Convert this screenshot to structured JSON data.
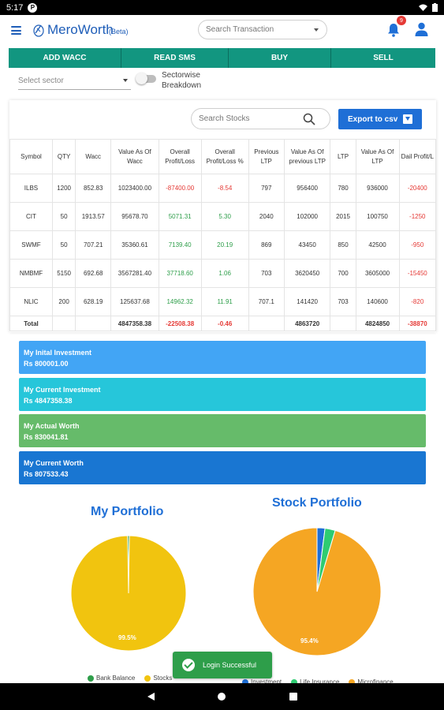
{
  "statusbar": {
    "time": "5:17",
    "app_glyph": "P"
  },
  "app": {
    "name": "MeroWorth",
    "beta": "(Beta)"
  },
  "search_transaction": {
    "placeholder": "Search Transaction"
  },
  "notifications": {
    "count": "9"
  },
  "actions": {
    "add_wacc": "ADD WACC",
    "read_sms": "READ SMS",
    "buy": "BUY",
    "sell": "SELL"
  },
  "filters": {
    "sector_placeholder": "Select sector",
    "sectorwise_label": "Sectorwise Breakdown",
    "sectorwise_on": false
  },
  "stocks_search": {
    "placeholder": "Search Stocks"
  },
  "export": {
    "label": "Export to csv"
  },
  "table": {
    "headers": [
      "Symbol",
      "QTY",
      "Wacc",
      "Value As Of Wacc",
      "Overall Profit/Loss",
      "Overall Profit/Loss %",
      "Previous LTP",
      "Value As Of previous LTP",
      "LTP",
      "Value As Of LTP",
      "Dail Profit/L"
    ],
    "rows": [
      [
        "ILBS",
        "1200",
        "852.83",
        "1023400.00",
        "-87400.00",
        "-8.54",
        "797",
        "956400",
        "780",
        "936000",
        "-20400"
      ],
      [
        "CIT",
        "50",
        "1913.57",
        "95678.70",
        "5071.31",
        "5.30",
        "2040",
        "102000",
        "2015",
        "100750",
        "-1250"
      ],
      [
        "SWMF",
        "50",
        "707.21",
        "35360.61",
        "7139.40",
        "20.19",
        "869",
        "43450",
        "850",
        "42500",
        "-950"
      ],
      [
        "NMBMF",
        "5150",
        "692.68",
        "3567281.40",
        "37718.60",
        "1.06",
        "703",
        "3620450",
        "700",
        "3605000",
        "-15450"
      ],
      [
        "NLIC",
        "200",
        "628.19",
        "125637.68",
        "14962.32",
        "11.91",
        "707.1",
        "141420",
        "703",
        "140600",
        "-820"
      ]
    ],
    "total": [
      "Total",
      "",
      "",
      "4847358.38",
      "-22508.38",
      "-0.46",
      "",
      "4863720",
      "",
      "4824850",
      "-38870"
    ]
  },
  "summary": [
    {
      "label": "My Inital Investment",
      "value": "Rs 800001.00",
      "color": "#42a5f5"
    },
    {
      "label": "My Current Investment",
      "value": "Rs 4847358.38",
      "color": "#26c6da"
    },
    {
      "label": "My Actual Worth",
      "value": "Rs 830041.81",
      "color": "#66bb6a"
    },
    {
      "label": "My Current Worth",
      "value": "Rs 807533.43",
      "color": "#1976d2"
    }
  ],
  "chart_data": [
    {
      "type": "pie",
      "title": "My Portfolio",
      "labels": [
        "Bank Balance",
        "Stocks"
      ],
      "values": [
        0.5,
        99.5
      ],
      "colors": [
        "#2e9e4a",
        "#f1c40f"
      ],
      "data_labels": [
        "",
        "99.5%"
      ],
      "legend": "bottom"
    },
    {
      "type": "pie",
      "title": "Stock Portfolio",
      "labels": [
        "Investment",
        "Life Insurance",
        "Microfinance"
      ],
      "values": [
        2.0,
        2.6,
        95.4
      ],
      "colors": [
        "#1f6fd6",
        "#2ecc71",
        "#f5a623"
      ],
      "data_labels": [
        "",
        "",
        "95.4%"
      ],
      "legend": "bottom"
    }
  ],
  "toast": {
    "message": "Login Successful"
  }
}
